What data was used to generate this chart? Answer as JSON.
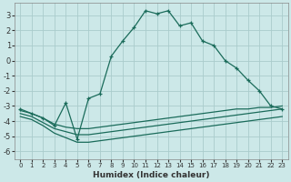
{
  "xlabel": "Humidex (Indice chaleur)",
  "bg_color": "#cce8e8",
  "grid_color": "#aacccc",
  "line_color": "#1a6b5a",
  "xlim": [
    -0.5,
    23.5
  ],
  "ylim": [
    -6.5,
    3.8
  ],
  "xticks": [
    0,
    1,
    2,
    3,
    4,
    5,
    6,
    7,
    8,
    9,
    10,
    11,
    12,
    13,
    14,
    15,
    16,
    17,
    18,
    19,
    20,
    21,
    22,
    23
  ],
  "yticks": [
    -6,
    -5,
    -4,
    -3,
    -2,
    -1,
    0,
    1,
    2,
    3
  ],
  "line1_x": [
    0,
    1,
    2,
    3,
    4,
    5,
    6,
    7,
    8,
    9,
    10,
    11,
    12,
    13,
    14,
    15,
    16,
    17,
    18,
    19,
    20,
    21,
    22,
    23
  ],
  "line1_y": [
    -3.2,
    -3.5,
    -3.8,
    -4.3,
    -2.8,
    -5.2,
    -2.5,
    -2.2,
    0.3,
    1.3,
    2.2,
    3.3,
    3.1,
    3.3,
    2.3,
    2.5,
    1.3,
    1.0,
    0.0,
    -0.5,
    -1.3,
    -2.0,
    -3.0,
    -3.2
  ],
  "line2_x": [
    0,
    1,
    2,
    3,
    4,
    5,
    6,
    7,
    8,
    9,
    10,
    11,
    12,
    13,
    14,
    15,
    16,
    17,
    18,
    19,
    20,
    21,
    22,
    23
  ],
  "line2_y": [
    -3.3,
    -3.5,
    -3.8,
    -4.2,
    -4.4,
    -4.5,
    -4.5,
    -4.4,
    -4.3,
    -4.2,
    -4.1,
    -4.0,
    -3.9,
    -3.8,
    -3.7,
    -3.6,
    -3.5,
    -3.4,
    -3.3,
    -3.2,
    -3.2,
    -3.1,
    -3.1,
    -3.0
  ],
  "line3_x": [
    0,
    1,
    2,
    3,
    4,
    5,
    6,
    7,
    8,
    9,
    10,
    11,
    12,
    13,
    14,
    15,
    16,
    17,
    18,
    19,
    20,
    21,
    22,
    23
  ],
  "line3_y": [
    -3.5,
    -3.7,
    -4.1,
    -4.5,
    -4.7,
    -4.9,
    -4.9,
    -4.8,
    -4.7,
    -4.6,
    -4.5,
    -4.4,
    -4.3,
    -4.2,
    -4.1,
    -4.0,
    -3.9,
    -3.8,
    -3.7,
    -3.6,
    -3.5,
    -3.4,
    -3.3,
    -3.2
  ],
  "line4_x": [
    0,
    1,
    2,
    3,
    4,
    5,
    6,
    7,
    8,
    9,
    10,
    11,
    12,
    13,
    14,
    15,
    16,
    17,
    18,
    19,
    20,
    21,
    22,
    23
  ],
  "line4_y": [
    -3.7,
    -3.9,
    -4.3,
    -4.8,
    -5.1,
    -5.4,
    -5.4,
    -5.3,
    -5.2,
    -5.1,
    -5.0,
    -4.9,
    -4.8,
    -4.7,
    -4.6,
    -4.5,
    -4.4,
    -4.3,
    -4.2,
    -4.1,
    -4.0,
    -3.9,
    -3.8,
    -3.7
  ]
}
